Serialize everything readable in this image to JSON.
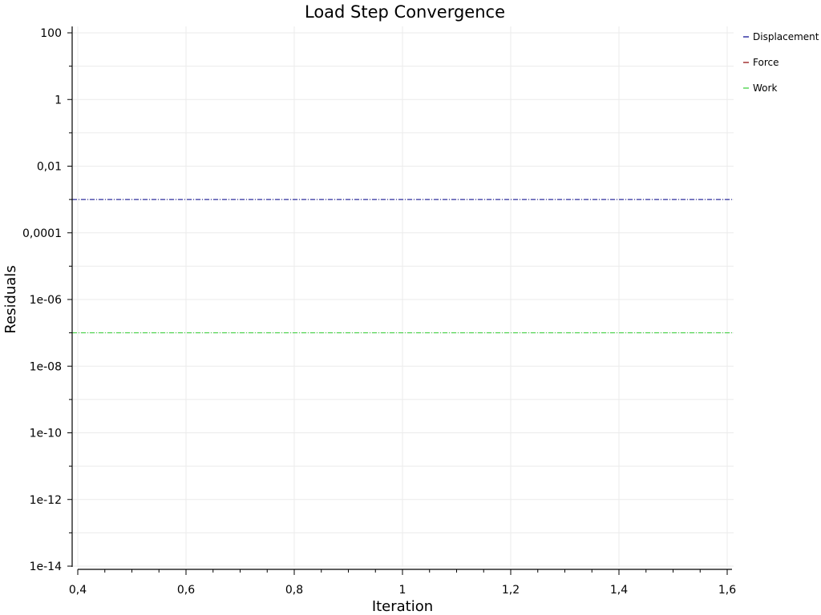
{
  "chart_data": {
    "type": "line",
    "title": "Load Step Convergence",
    "xlabel": "Iteration",
    "ylabel": "Residuals",
    "xlim": [
      0.4,
      1.6
    ],
    "x_ticks": [
      0.4,
      0.6,
      0.8,
      1.0,
      1.2,
      1.4,
      1.6
    ],
    "x_tick_labels": [
      "0,4",
      "0,6",
      "0,8",
      "1",
      "1,2",
      "1,4",
      "1,6"
    ],
    "y_scale": "log",
    "ylim": [
      1e-14,
      100
    ],
    "y_ticks": [
      100,
      1,
      0.01,
      0.0001,
      1e-06,
      1e-08,
      1e-10,
      1e-12,
      1e-14
    ],
    "y_tick_labels": [
      "100",
      "1",
      "0,01",
      "0,0001",
      "1e-06",
      "1e-08",
      "1e-10",
      "1e-12",
      "1e-14"
    ],
    "grid": true,
    "legend_position": "right",
    "series": [
      {
        "name": "Displacement",
        "color": "#00008b",
        "line_style": "dash-dot",
        "x": [
          0.4,
          1.6
        ],
        "y": [
          0.001,
          0.001
        ]
      },
      {
        "name": "Force",
        "color": "#8b0000",
        "line_style": "dash-dot",
        "x": [],
        "y": []
      },
      {
        "name": "Work",
        "color": "#32cd32",
        "line_style": "dash-dot",
        "x": [
          0.4,
          1.6
        ],
        "y": [
          1e-07,
          1e-07
        ]
      }
    ]
  }
}
